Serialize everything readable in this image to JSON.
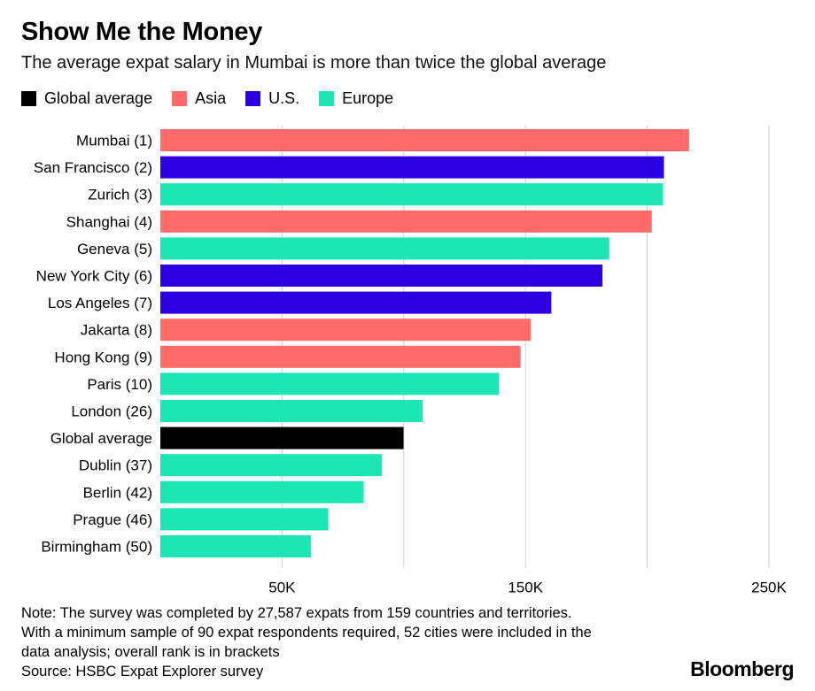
{
  "title": "Show Me the Money",
  "subtitle": "The average expat salary in Mumbai is more than twice the global average",
  "legend": [
    {
      "label": "Global average",
      "color": "#000000"
    },
    {
      "label": "Asia",
      "color": "#ff6b6b"
    },
    {
      "label": "U.S.",
      "color": "#2b00e0"
    },
    {
      "label": "Europe",
      "color": "#1de5b4"
    }
  ],
  "note": {
    "line1": "Note: The survey was completed by 27,587 expats from 159 countries and territories.",
    "line2": "With a minimum sample of 90 expat respondents required, 52 cities were included in the",
    "line3": "data analysis; overall rank is in brackets",
    "source": "Source: HSBC Expat Explorer survey"
  },
  "brand": "Bloomberg",
  "chart_data": {
    "type": "bar",
    "orientation": "horizontal",
    "xlim": [
      0,
      250000
    ],
    "ticks": [
      {
        "value": 50000,
        "label": "50K"
      },
      {
        "value": 100000,
        "label": ""
      },
      {
        "value": 150000,
        "label": "150K"
      },
      {
        "value": 200000,
        "label": ""
      },
      {
        "value": 250000,
        "label": "250K"
      }
    ],
    "grid": true,
    "categories": [
      "Mumbai (1)",
      "San Francisco (2)",
      "Zurich (3)",
      "Shanghai (4)",
      "Geneva (5)",
      "New York City (6)",
      "Los Angeles (7)",
      "Jakarta (8)",
      "Hong Kong (9)",
      "Paris (10)",
      "London (26)",
      "Global average",
      "Dublin (37)",
      "Berlin (42)",
      "Prague (46)",
      "Birmingham (50)"
    ],
    "values": [
      217165,
      206875,
      206524,
      201885,
      184397,
      181622,
      160617,
      152104,
      147982,
      139109,
      107712,
      99903,
      90955,
      83574,
      68999,
      61798
    ],
    "groups": [
      "Asia",
      "U.S.",
      "Europe",
      "Asia",
      "Europe",
      "U.S.",
      "U.S.",
      "Asia",
      "Asia",
      "Europe",
      "Europe",
      "Global average",
      "Europe",
      "Europe",
      "Europe",
      "Europe"
    ],
    "colors": {
      "Global average": "#000000",
      "Asia": "#ff6b6b",
      "U.S.": "#2b00e0",
      "Europe": "#1de5b4"
    }
  }
}
